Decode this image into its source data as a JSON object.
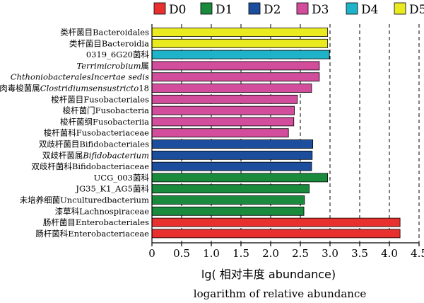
{
  "chart_data": {
    "type": "bar",
    "orientation": "horizontal",
    "xlabel": "lg( 相对丰度 abundance)",
    "xlabel_sub": "logarithm of relative abundance",
    "xlim": [
      0,
      4.5
    ],
    "xticks": [
      "0",
      "0.5",
      "1.0",
      "1.5",
      "2.0",
      "2.5",
      "3.0",
      "3.5",
      "4.0",
      "4.5"
    ],
    "grid": "vertical dashed at each tick",
    "legend_position": "top",
    "groups": [
      {
        "name": "D0",
        "color": "#e8312f"
      },
      {
        "name": "D1",
        "color": "#1a8a3c"
      },
      {
        "name": "D2",
        "color": "#1d4e9e"
      },
      {
        "name": "D3",
        "color": "#d24d9c"
      },
      {
        "name": "D4",
        "color": "#1eb3c9"
      },
      {
        "name": "D5",
        "color": "#eaea21"
      }
    ],
    "bars": [
      {
        "label": [
          {
            "t": "类杆菌目Bacteroidales"
          }
        ],
        "group": "D5",
        "value": 2.96
      },
      {
        "label": [
          {
            "t": "类杆菌目Bacteroidia"
          }
        ],
        "group": "D5",
        "value": 2.96
      },
      {
        "label": [
          {
            "t": "0319_6G20菌科"
          }
        ],
        "group": "D4",
        "value": 2.99
      },
      {
        "label": [
          {
            "t": "Terrimicrobium",
            "i": true
          },
          {
            "t": "属"
          }
        ],
        "group": "D3",
        "value": 2.82
      },
      {
        "label": [
          {
            "t": "ChthoniobacteralesIncertae sedis",
            "i": true
          }
        ],
        "group": "D3",
        "value": 2.82
      },
      {
        "label": [
          {
            "t": "肉毒梭菌属"
          },
          {
            "t": "Clostridiumsensustricto",
            "i": true
          },
          {
            "t": "18"
          }
        ],
        "group": "D3",
        "value": 2.69
      },
      {
        "label": [
          {
            "t": "梭杆菌目Fusobacteriales"
          }
        ],
        "group": "D3",
        "value": 2.45
      },
      {
        "label": [
          {
            "t": "梭杆菌门Fusobacteria"
          }
        ],
        "group": "D3",
        "value": 2.4
      },
      {
        "label": [
          {
            "t": "梭杆菌纲Fusobacteriia"
          }
        ],
        "group": "D3",
        "value": 2.39
      },
      {
        "label": [
          {
            "t": "梭杆菌科Fusobacteriaceae"
          }
        ],
        "group": "D3",
        "value": 2.3
      },
      {
        "label": [
          {
            "t": "双歧杆菌目Bifidobacteriales"
          }
        ],
        "group": "D2",
        "value": 2.71
      },
      {
        "label": [
          {
            "t": "双歧杆菌属"
          },
          {
            "t": "Bifidobacterium",
            "i": true
          }
        ],
        "group": "D2",
        "value": 2.7
      },
      {
        "label": [
          {
            "t": "双歧杆菌科Bifidobacteriaceae"
          }
        ],
        "group": "D2",
        "value": 2.69
      },
      {
        "label": [
          {
            "t": "UCG_003菌科"
          }
        ],
        "group": "D1",
        "value": 2.96
      },
      {
        "label": [
          {
            "t": "JG35_K1_AG5菌科"
          }
        ],
        "group": "D1",
        "value": 2.65
      },
      {
        "label": [
          {
            "t": "未培养细菌Unculturedbacterium"
          }
        ],
        "group": "D1",
        "value": 2.57
      },
      {
        "label": [
          {
            "t": "漆草科Lachnospiraceae"
          }
        ],
        "group": "D1",
        "value": 2.56
      },
      {
        "label": [
          {
            "t": "肠杆菌目Enterobacteriales"
          }
        ],
        "group": "D0",
        "value": 4.18
      },
      {
        "label": [
          {
            "t": "肠杆菌科Enterobacteriaceae"
          }
        ],
        "group": "D0",
        "value": 4.18
      }
    ]
  }
}
